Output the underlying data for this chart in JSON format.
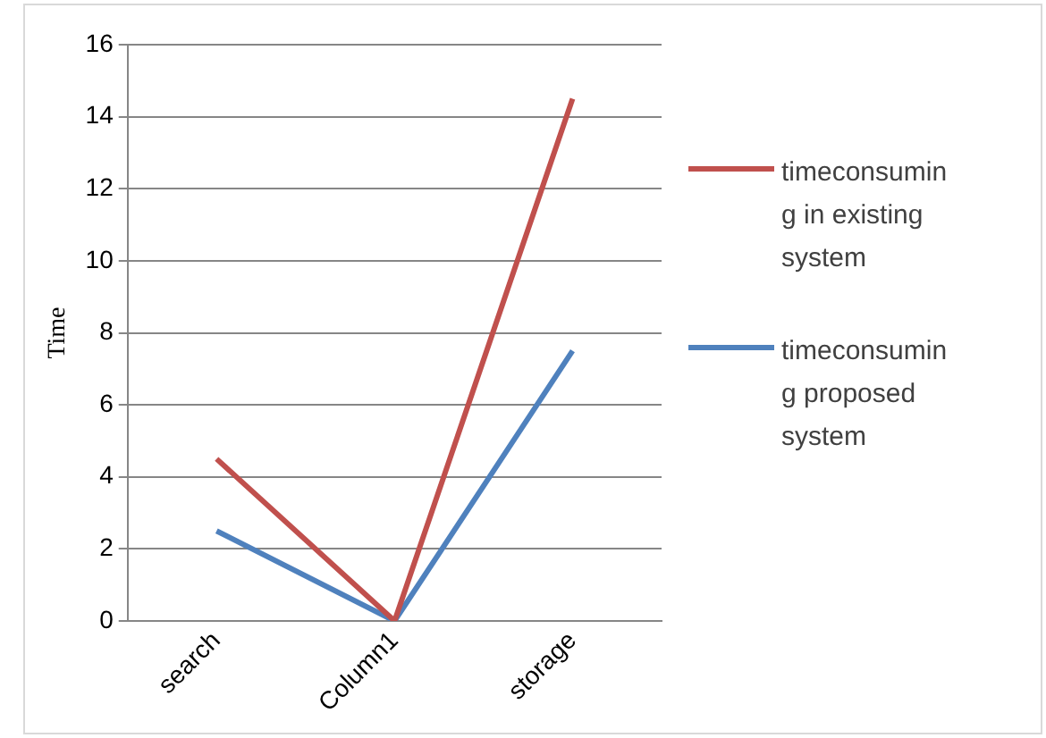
{
  "chart_data": {
    "type": "line",
    "ylabel": "Time",
    "categories": [
      "search",
      "Column1",
      "storage"
    ],
    "series": [
      {
        "name": "timeconsuming in existing system",
        "color": "#c0504d",
        "values": [
          4.5,
          0,
          14.5
        ]
      },
      {
        "name": "timeconsuming proposed system",
        "color": "#4f81bd",
        "values": [
          2.5,
          0,
          7.5
        ]
      }
    ],
    "ylim": [
      0,
      16
    ],
    "yticks": [
      0,
      2,
      4,
      6,
      8,
      10,
      12,
      14,
      16
    ],
    "grid": "y",
    "legend": "right",
    "marker": "none"
  }
}
